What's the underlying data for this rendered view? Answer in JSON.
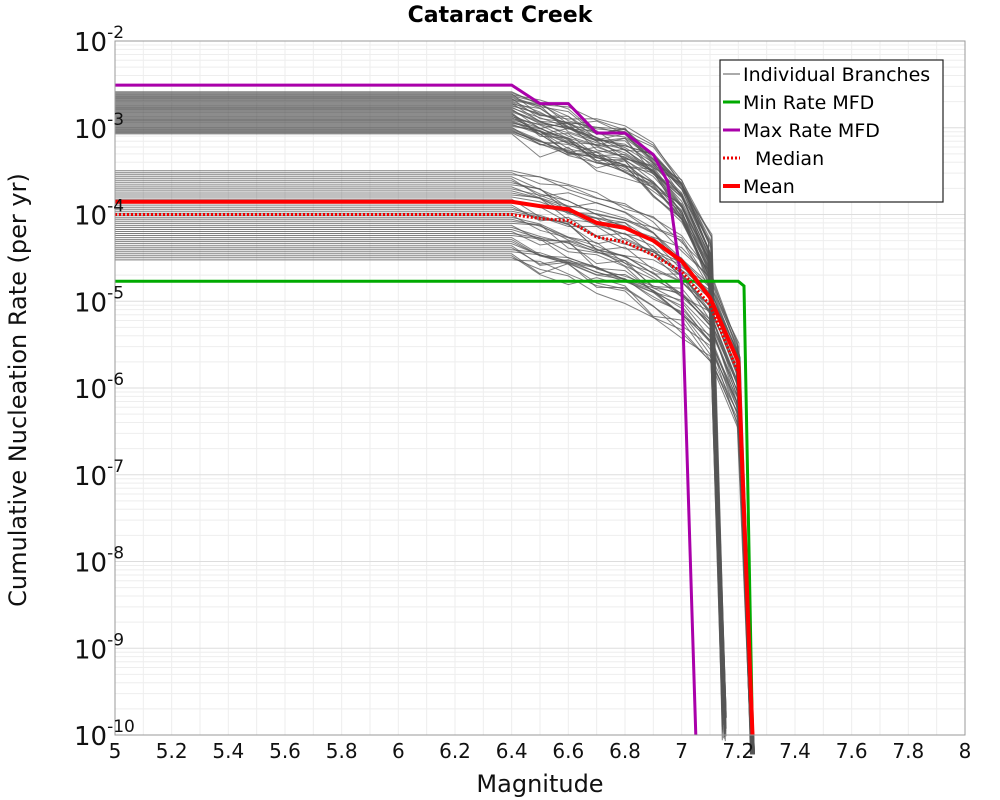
{
  "chart_data": {
    "type": "line",
    "title": "Cataract Creek",
    "xlabel": "Magnitude",
    "ylabel": "Cumulative Nucleation Rate (per yr)",
    "x_scale": "linear",
    "y_scale": "log",
    "xlim": [
      5,
      8
    ],
    "ylim": [
      1e-10,
      0.01
    ],
    "x_ticks": [
      "5",
      "5.2",
      "5.4",
      "5.6",
      "5.8",
      "6",
      "6.2",
      "6.4",
      "6.6",
      "6.8",
      "7",
      "7.2",
      "7.4",
      "7.6",
      "7.8",
      "8"
    ],
    "y_ticks": [
      {
        "base": "10",
        "exp": "-10"
      },
      {
        "base": "10",
        "exp": "-9"
      },
      {
        "base": "10",
        "exp": "-8"
      },
      {
        "base": "10",
        "exp": "-7"
      },
      {
        "base": "10",
        "exp": "-6"
      },
      {
        "base": "10",
        "exp": "-5"
      },
      {
        "base": "10",
        "exp": "-4"
      },
      {
        "base": "10",
        "exp": "-3"
      },
      {
        "base": "10",
        "exp": "-2"
      }
    ],
    "grid": true,
    "legend_position": "top-right",
    "series": [
      {
        "name": "Individual Branches",
        "color": "#555555",
        "style": "thin",
        "note_visible": "many overlapping grey branch curves",
        "groups": [
          {
            "plateau_range": [
              0.00085,
              0.0026
            ],
            "x": [
              5,
              6.4,
              6.5,
              6.6,
              6.7,
              6.8,
              6.9,
              7.0,
              7.1,
              7.15
            ],
            "shape": [
              1,
              1,
              0.72,
              0.58,
              0.42,
              0.36,
              0.22,
              0.1,
              0.02,
              1e-07
            ]
          },
          {
            "plateau_range": [
              3e-05,
              0.00032
            ],
            "x": [
              5,
              6.4,
              6.5,
              6.6,
              6.7,
              6.8,
              6.9,
              7.0,
              7.1,
              7.2,
              7.25
            ],
            "shape": [
              1,
              1,
              0.78,
              0.62,
              0.48,
              0.38,
              0.26,
              0.16,
              0.07,
              0.012,
              1e-07
            ]
          }
        ]
      },
      {
        "name": "Min Rate MFD",
        "color": "#00aa00",
        "x": [
          5,
          7.2,
          7.22,
          7.25
        ],
        "y": [
          1.7e-05,
          1.7e-05,
          1.5e-05,
          1e-10
        ]
      },
      {
        "name": "Max Rate MFD",
        "color": "#aa00aa",
        "x": [
          5,
          6.4,
          6.5,
          6.6,
          6.7,
          6.8,
          6.9,
          6.95,
          7.0,
          7.05
        ],
        "y": [
          0.0031,
          0.0031,
          0.0019,
          0.0019,
          0.00087,
          0.00087,
          0.00049,
          0.00024,
          1.6e-05,
          1e-10
        ]
      },
      {
        "name": "Median",
        "color": "#ee0000",
        "style": "dotted",
        "x": [
          5,
          6.4,
          6.5,
          6.6,
          6.7,
          6.8,
          6.9,
          7.0,
          7.1,
          7.2,
          7.25
        ],
        "y": [
          0.0001,
          0.0001,
          9e-05,
          8.5e-05,
          5.5e-05,
          4.8e-05,
          3.4e-05,
          2.2e-05,
          9e-06,
          1.5e-06,
          1e-10
        ]
      },
      {
        "name": "Mean",
        "color": "#ff0000",
        "x": [
          5,
          6.4,
          6.5,
          6.6,
          6.7,
          6.8,
          6.9,
          7.0,
          7.1,
          7.2,
          7.25
        ],
        "y": [
          0.00014,
          0.00014,
          0.000125,
          0.000115,
          8e-05,
          7e-05,
          5e-05,
          2.9e-05,
          1.1e-05,
          2e-06,
          1e-10
        ]
      }
    ]
  }
}
